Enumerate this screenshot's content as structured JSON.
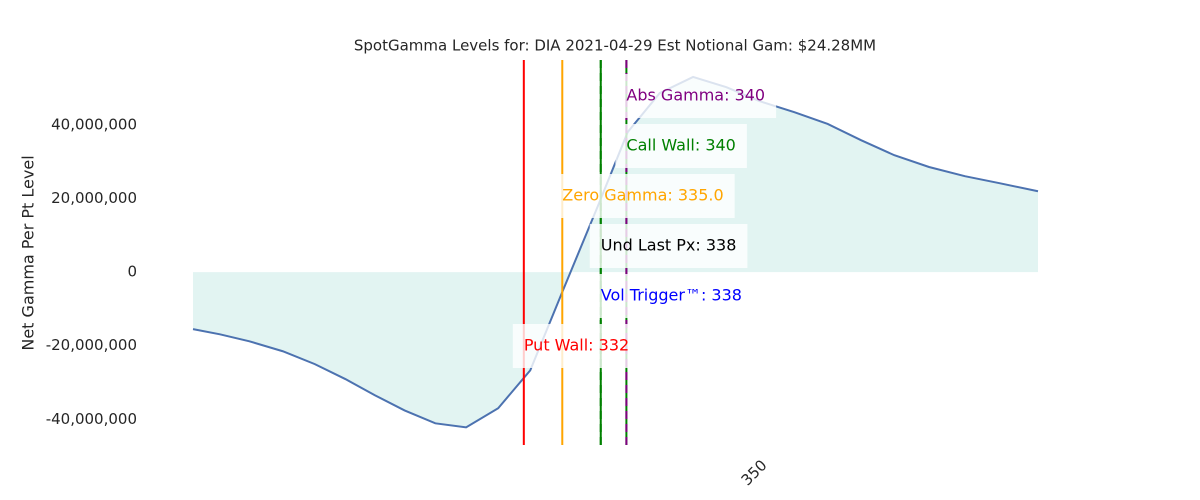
{
  "chart_data": {
    "type": "line",
    "title": "SpotGamma Levels for: DIA  2021-04-29 Est Notional Gam: $24.28MM",
    "y_label": "Net Gamma Per Pt Level",
    "x": [
      306.2,
      308.3,
      310.6,
      313.2,
      315.7,
      318.1,
      320.4,
      322.7,
      325.1,
      327.5,
      330.0,
      332.5,
      335.0,
      337.8,
      340.1,
      342.6,
      345.2,
      347.8,
      350.4,
      353.1,
      355.7,
      358.3,
      360.9,
      363.6,
      366.4,
      369.1,
      372.1
    ],
    "series": [
      {
        "color": "#4c72b0",
        "fill": "#e2f4f2",
        "values": [
          -15500000,
          -16900000,
          -18800000,
          -21500000,
          -25000000,
          -29100000,
          -33500000,
          -37600000,
          -41100000,
          -42200000,
          -37000000,
          -26700000,
          -5400000,
          18200000,
          38100000,
          48700000,
          53100000,
          50300000,
          46500000,
          43500000,
          40300000,
          35900000,
          31800000,
          28600000,
          26100000,
          24200000,
          22000000
        ]
      }
    ],
    "xlim": [
      306.2,
      372.1
    ],
    "xticks": [
      350
    ],
    "ylim": [
      -47000000,
      57700000
    ],
    "yticks": [
      {
        "value": -40000000,
        "label": "-40,000,000"
      },
      {
        "value": -20000000,
        "label": "-20,000,000"
      },
      0,
      {
        "value": 20000000,
        "label": "20,000,000"
      },
      {
        "value": 40000000,
        "label": "40,000,000"
      }
    ],
    "markers": [
      {
        "label": "Abs Gamma: 340",
        "value": 340,
        "color": "purple",
        "line_color": "purple",
        "dashed": true
      },
      {
        "label": "Call Wall: 340",
        "value": 340,
        "color": "green",
        "line_color": "green",
        "dashed": false
      },
      {
        "label": "Zero Gamma: 335.0",
        "value": 335.0,
        "color": "orange",
        "line_color": "orange",
        "dashed": false
      },
      {
        "label": "Und Last Px: 338",
        "value": 338,
        "color": "black",
        "line_color": "green",
        "dashed": false
      },
      {
        "label": "Vol Trigger™: 338",
        "value": 338,
        "color": "blue",
        "line_color": "green",
        "dashed": true
      },
      {
        "label": "Put Wall: 332",
        "value": 332,
        "color": "red",
        "line_color": "red",
        "dashed": false
      }
    ]
  }
}
